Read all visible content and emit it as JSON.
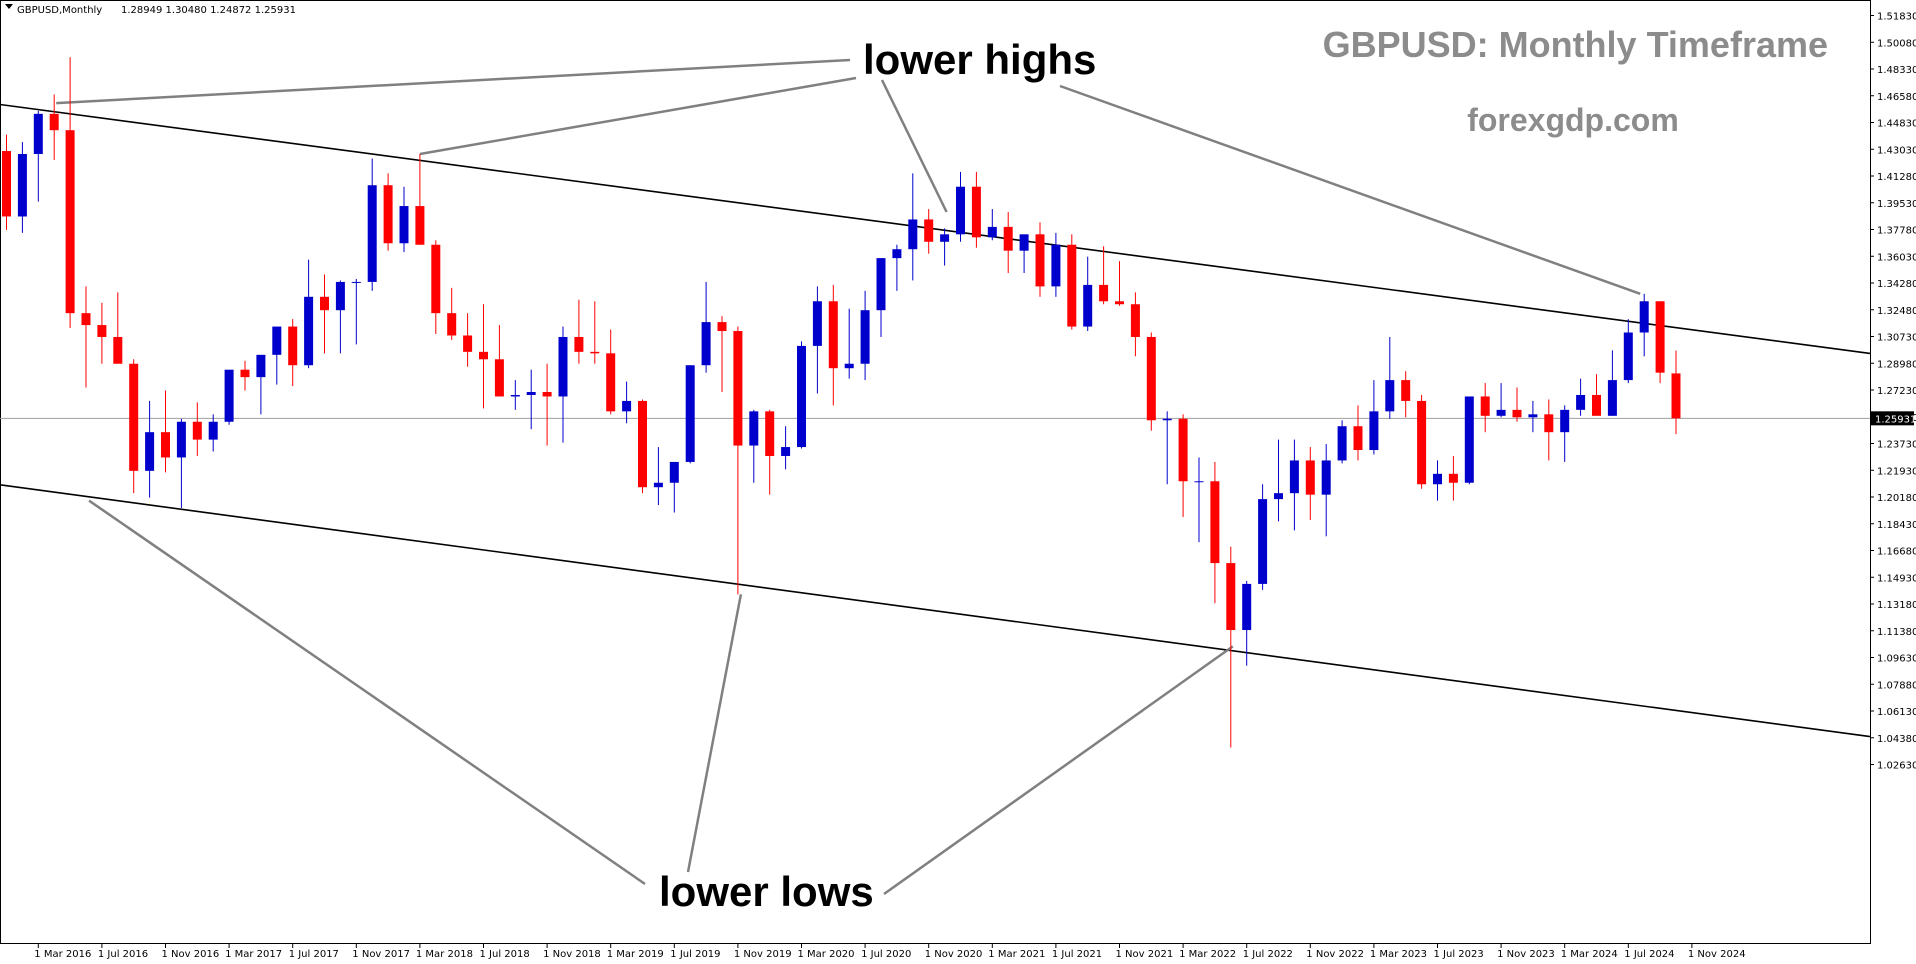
{
  "header": {
    "symbol": "GBPUSD,Monthly",
    "ohlc": "1.28949 1.30480 1.24872 1.25931"
  },
  "watermark": {
    "title": "GBPUSD: Monthly Timeframe",
    "site": "forexgdp.com"
  },
  "annotations": {
    "lower_highs": "lower highs",
    "lower_lows": "lower lows"
  },
  "colors": {
    "bull": "#0000cc",
    "bear": "#ff0000",
    "trendline": "#000000",
    "pointer": "#808080",
    "current_price_line": "#a0a0a0",
    "price_tag_bg": "#000000",
    "price_tag_text": "#ffffff"
  },
  "chart_data": {
    "type": "candlestick",
    "ylim": [
      1.0266,
      1.5301
    ],
    "current_price": "1.25931",
    "y_ticks": [
      "1.51830",
      "1.50080",
      "1.48330",
      "1.46580",
      "1.44830",
      "1.43030",
      "1.41280",
      "1.39530",
      "1.37780",
      "1.36030",
      "1.34280",
      "1.32480",
      "1.30730",
      "1.28980",
      "1.27230",
      "1.25480",
      "1.23730",
      "1.21930",
      "1.20180",
      "1.18430",
      "1.16680",
      "1.14930",
      "1.13180",
      "1.11380",
      "1.09630",
      "1.07880",
      "1.06130",
      "1.04380",
      "1.02630"
    ],
    "x_ticks": [
      "1 Mar 2016",
      "1 Jul 2016",
      "1 Nov 2016",
      "1 Mar 2017",
      "1 Jul 2017",
      "1 Nov 2017",
      "1 Mar 2018",
      "1 Jul 2018",
      "1 Nov 2018",
      "1 Mar 2019",
      "1 Jul 2019",
      "1 Nov 2019",
      "1 Mar 2020",
      "1 Jul 2020",
      "1 Nov 2020",
      "1 Mar 2021",
      "1 Jul 2021",
      "1 Nov 2021",
      "1 Mar 2022",
      "1 Jul 2022",
      "1 Nov 2022",
      "1 Mar 2023",
      "1 Jul 2023",
      "1 Nov 2023",
      "1 Mar 2024",
      "1 Jul 2024",
      "1 Nov 2024"
    ],
    "x_tick_start_index": 2,
    "x_tick_step": 4,
    "first_candle": "Jan 2016",
    "candles": [
      [
        1.439,
        1.45,
        1.386,
        1.395
      ],
      [
        1.395,
        1.445,
        1.384,
        1.437
      ],
      [
        1.437,
        1.466,
        1.405,
        1.464
      ],
      [
        1.464,
        1.477,
        1.433,
        1.453
      ],
      [
        1.453,
        1.502,
        1.32,
        1.33
      ],
      [
        1.33,
        1.348,
        1.28,
        1.322
      ],
      [
        1.322,
        1.337,
        1.296,
        1.314
      ],
      [
        1.314,
        1.344,
        1.3,
        1.296
      ],
      [
        1.296,
        1.299,
        1.209,
        1.224
      ],
      [
        1.224,
        1.271,
        1.206,
        1.25
      ],
      [
        1.25,
        1.278,
        1.223,
        1.233
      ],
      [
        1.233,
        1.259,
        1.199,
        1.257
      ],
      [
        1.257,
        1.27,
        1.234,
        1.245
      ],
      [
        1.245,
        1.262,
        1.237,
        1.257
      ],
      [
        1.257,
        1.291,
        1.255,
        1.292
      ],
      [
        1.292,
        1.298,
        1.278,
        1.287
      ],
      [
        1.287,
        1.301,
        1.262,
        1.302
      ],
      [
        1.302,
        1.32,
        1.282,
        1.321
      ],
      [
        1.321,
        1.326,
        1.281,
        1.295
      ],
      [
        1.295,
        1.366,
        1.293,
        1.341
      ],
      [
        1.341,
        1.356,
        1.303,
        1.332
      ],
      [
        1.332,
        1.352,
        1.303,
        1.351
      ],
      [
        1.351,
        1.353,
        1.309,
        1.351
      ],
      [
        1.351,
        1.434,
        1.345,
        1.416
      ],
      [
        1.416,
        1.424,
        1.372,
        1.377
      ],
      [
        1.377,
        1.415,
        1.371,
        1.402
      ],
      [
        1.402,
        1.437,
        1.376,
        1.376
      ],
      [
        1.376,
        1.379,
        1.316,
        1.33
      ],
      [
        1.33,
        1.347,
        1.312,
        1.315
      ],
      [
        1.315,
        1.33,
        1.294,
        1.304
      ],
      [
        1.304,
        1.336,
        1.266,
        1.299
      ],
      [
        1.299,
        1.322,
        1.274,
        1.274
      ],
      [
        1.274,
        1.285,
        1.265,
        1.275
      ],
      [
        1.275,
        1.292,
        1.252,
        1.277
      ],
      [
        1.277,
        1.296,
        1.241,
        1.274
      ],
      [
        1.274,
        1.321,
        1.243,
        1.314
      ],
      [
        1.314,
        1.339,
        1.296,
        1.304
      ],
      [
        1.304,
        1.338,
        1.296,
        1.303
      ],
      [
        1.303,
        1.319,
        1.262,
        1.264
      ],
      [
        1.264,
        1.284,
        1.256,
        1.271
      ],
      [
        1.271,
        1.272,
        1.209,
        1.213
      ],
      [
        1.213,
        1.24,
        1.201,
        1.216
      ],
      [
        1.216,
        1.227,
        1.196,
        1.23
      ],
      [
        1.23,
        1.295,
        1.229,
        1.295
      ],
      [
        1.295,
        1.351,
        1.29,
        1.324
      ],
      [
        1.324,
        1.328,
        1.277,
        1.318
      ],
      [
        1.318,
        1.321,
        1.141,
        1.241
      ],
      [
        1.241,
        1.265,
        1.216,
        1.264
      ],
      [
        1.264,
        1.265,
        1.208,
        1.234
      ],
      [
        1.234,
        1.254,
        1.225,
        1.24
      ],
      [
        1.24,
        1.311,
        1.239,
        1.308
      ],
      [
        1.308,
        1.348,
        1.276,
        1.338
      ],
      [
        1.338,
        1.349,
        1.268,
        1.293
      ],
      [
        1.293,
        1.333,
        1.286,
        1.296
      ],
      [
        1.296,
        1.345,
        1.285,
        1.332
      ],
      [
        1.332,
        1.367,
        1.314,
        1.367
      ],
      [
        1.367,
        1.376,
        1.345,
        1.373
      ],
      [
        1.373,
        1.424,
        1.352,
        1.393
      ],
      [
        1.393,
        1.4,
        1.37,
        1.378
      ],
      [
        1.378,
        1.387,
        1.362,
        1.383
      ],
      [
        1.383,
        1.425,
        1.378,
        1.415
      ],
      [
        1.415,
        1.425,
        1.374,
        1.381
      ],
      [
        1.381,
        1.4,
        1.379,
        1.388
      ],
      [
        1.388,
        1.398,
        1.357,
        1.372
      ],
      [
        1.372,
        1.383,
        1.357,
        1.383
      ],
      [
        1.383,
        1.391,
        1.341,
        1.348
      ],
      [
        1.348,
        1.384,
        1.341,
        1.376
      ],
      [
        1.376,
        1.383,
        1.319,
        1.321
      ],
      [
        1.321,
        1.368,
        1.318,
        1.349
      ],
      [
        1.349,
        1.375,
        1.336,
        1.338
      ],
      [
        1.338,
        1.365,
        1.335,
        1.336
      ],
      [
        1.336,
        1.344,
        1.301,
        1.314
      ],
      [
        1.314,
        1.317,
        1.251,
        1.258
      ],
      [
        1.258,
        1.264,
        1.215,
        1.259
      ],
      [
        1.259,
        1.262,
        1.193,
        1.217
      ],
      [
        1.217,
        1.233,
        1.176,
        1.217
      ],
      [
        1.217,
        1.23,
        1.135,
        1.162
      ],
      [
        1.162,
        1.173,
        1.038,
        1.117
      ],
      [
        1.117,
        1.15,
        1.093,
        1.148
      ],
      [
        1.148,
        1.215,
        1.144,
        1.205
      ],
      [
        1.205,
        1.245,
        1.19,
        1.209
      ],
      [
        1.209,
        1.245,
        1.184,
        1.231
      ],
      [
        1.231,
        1.24,
        1.191,
        1.208
      ],
      [
        1.208,
        1.242,
        1.18,
        1.231
      ],
      [
        1.231,
        1.258,
        1.229,
        1.254
      ],
      [
        1.254,
        1.268,
        1.231,
        1.238
      ],
      [
        1.238,
        1.285,
        1.235,
        1.264
      ],
      [
        1.264,
        1.314,
        1.259,
        1.285
      ],
      [
        1.285,
        1.291,
        1.26,
        1.271
      ],
      [
        1.271,
        1.275,
        1.212,
        1.215
      ],
      [
        1.215,
        1.231,
        1.204,
        1.222
      ],
      [
        1.222,
        1.234,
        1.204,
        1.216
      ],
      [
        1.216,
        1.273,
        1.215,
        1.274
      ],
      [
        1.274,
        1.283,
        1.25,
        1.261
      ],
      [
        1.261,
        1.283,
        1.26,
        1.265
      ],
      [
        1.265,
        1.28,
        1.257,
        1.26
      ],
      [
        1.26,
        1.271,
        1.25,
        1.262
      ],
      [
        1.262,
        1.272,
        1.231,
        1.25
      ],
      [
        1.25,
        1.268,
        1.23,
        1.265
      ],
      [
        1.265,
        1.286,
        1.261,
        1.275
      ],
      [
        1.275,
        1.289,
        1.262,
        1.261
      ],
      [
        1.261,
        1.305,
        1.261,
        1.285
      ],
      [
        1.285,
        1.326,
        1.283,
        1.317
      ],
      [
        1.317,
        1.343,
        1.301,
        1.338
      ],
      [
        1.338,
        1.338,
        1.283,
        1.29
      ],
      [
        1.2895,
        1.3048,
        1.2487,
        1.2593
      ]
    ]
  },
  "trendlines": [
    {
      "name": "upper-channel",
      "p1": [
        "Jan 2016",
        1.4697
      ],
      "p2": [
        "Jan 2025",
        1.316
      ]
    },
    {
      "name": "lower-channel",
      "p1": [
        "Jan 2016",
        1.214
      ],
      "p2": [
        "Jan 2025",
        1.0586
      ]
    }
  ]
}
